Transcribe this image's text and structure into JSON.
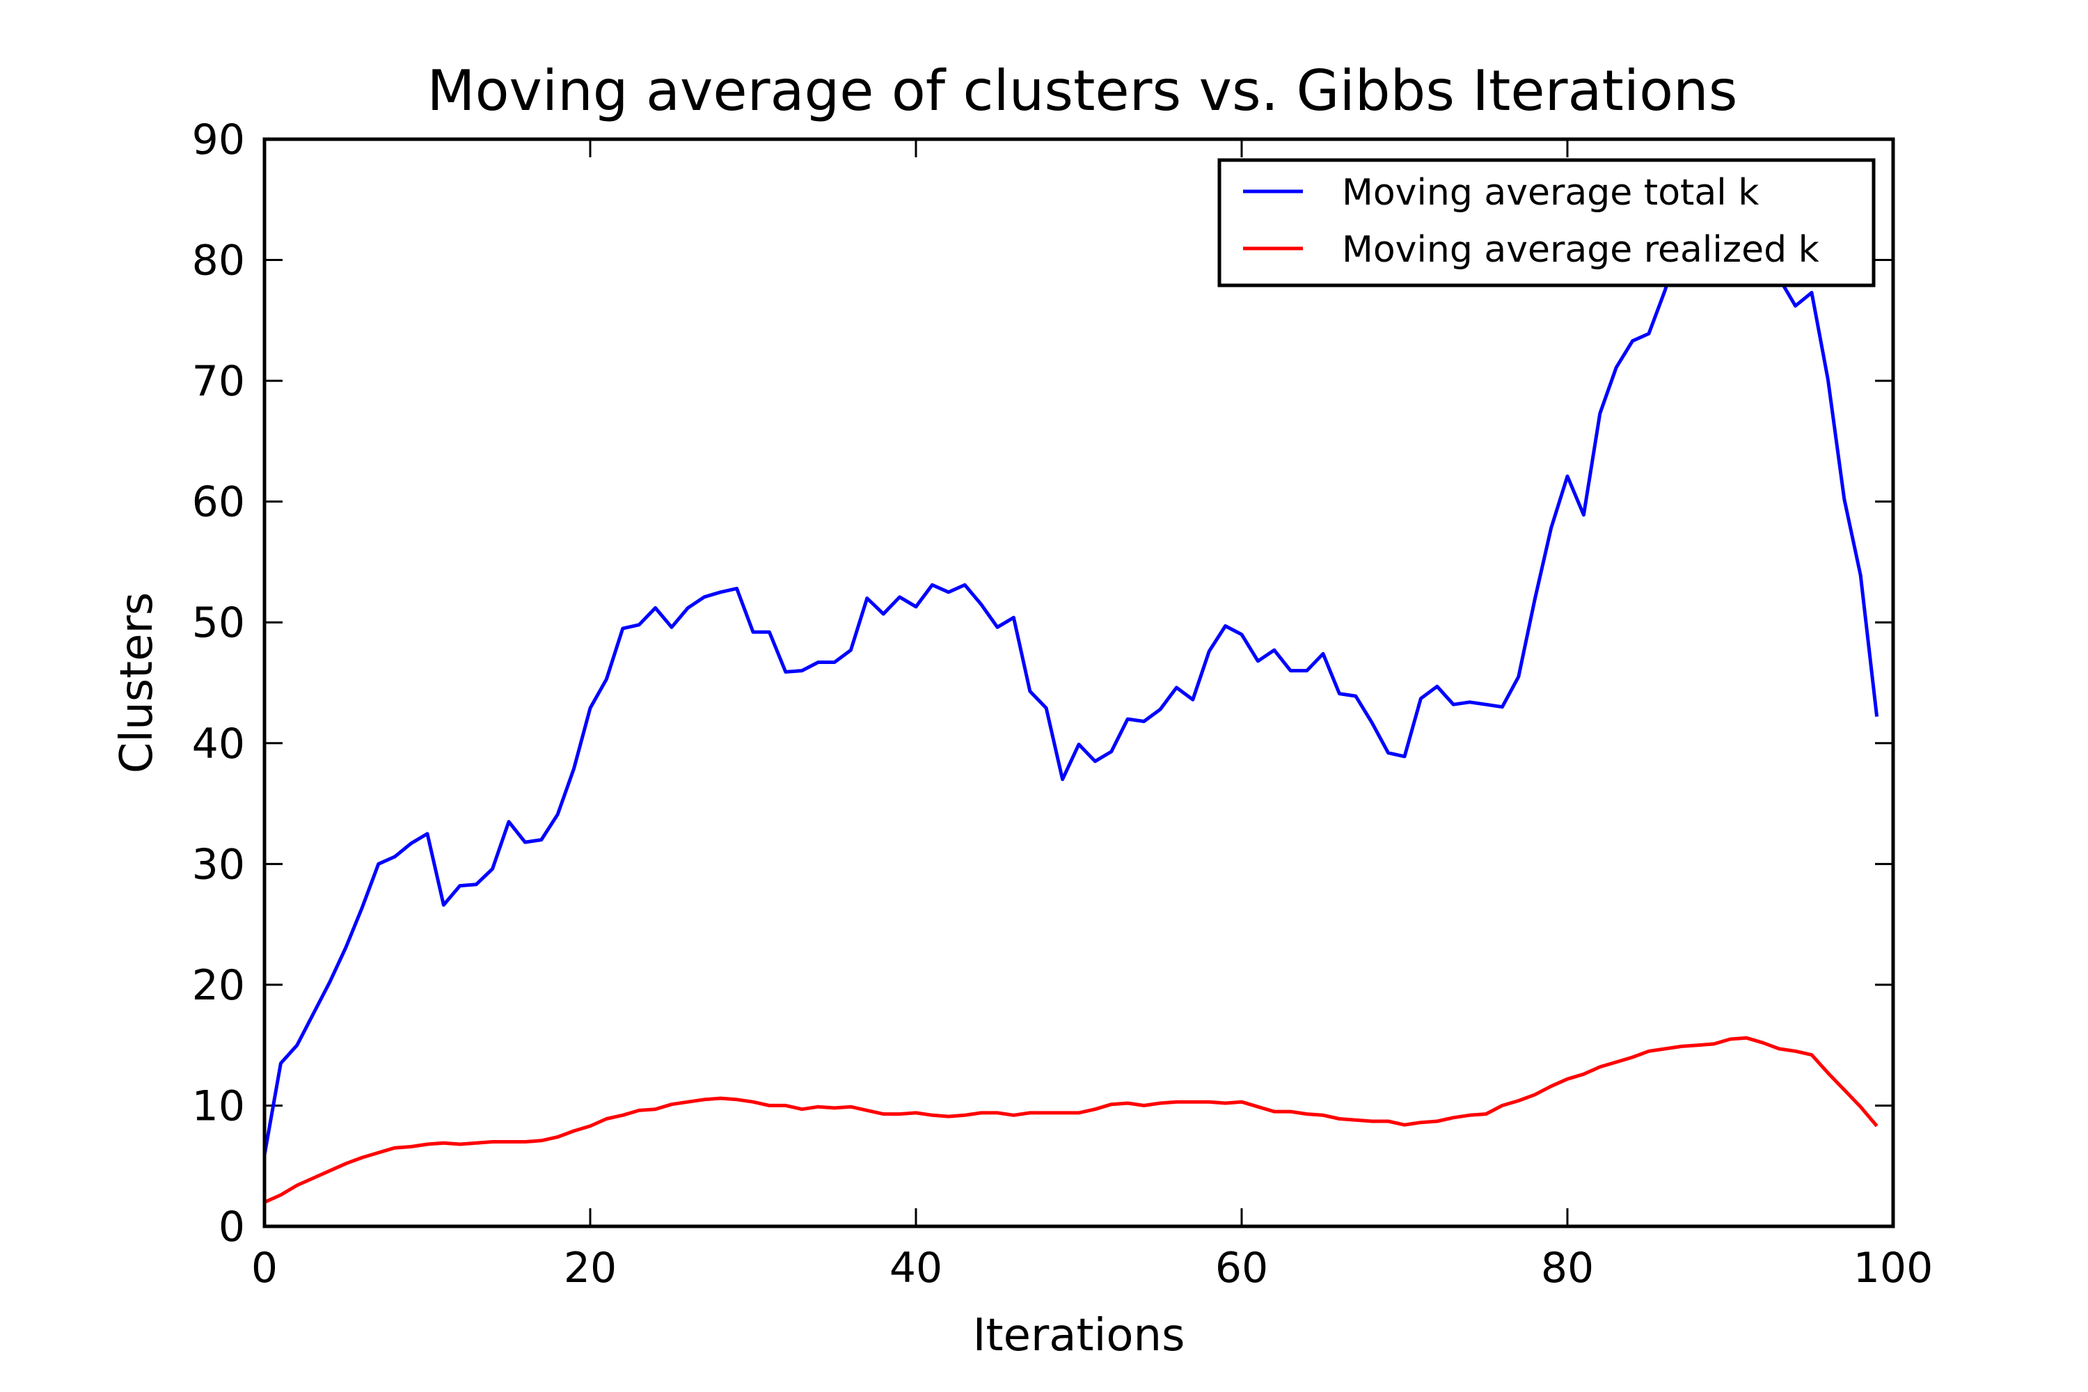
{
  "chart_data": {
    "type": "line",
    "title": "Moving average of clusters vs. Gibbs Iterations",
    "xlabel": "Iterations",
    "ylabel": "Clusters",
    "xlim": [
      0,
      100
    ],
    "ylim": [
      0,
      90
    ],
    "xticks": [
      0,
      20,
      40,
      60,
      80,
      100
    ],
    "yticks": [
      0,
      10,
      20,
      30,
      40,
      50,
      60,
      70,
      80,
      90
    ],
    "grid": false,
    "legend_position": "top-right",
    "x": [
      0,
      1,
      2,
      3,
      4,
      5,
      6,
      7,
      8,
      9,
      10,
      11,
      12,
      13,
      14,
      15,
      16,
      17,
      18,
      19,
      20,
      21,
      22,
      23,
      24,
      25,
      26,
      27,
      28,
      29,
      30,
      31,
      32,
      33,
      34,
      35,
      36,
      37,
      38,
      39,
      40,
      41,
      42,
      43,
      44,
      45,
      46,
      47,
      48,
      49,
      50,
      51,
      52,
      53,
      54,
      55,
      56,
      57,
      58,
      59,
      60,
      61,
      62,
      63,
      64,
      65,
      66,
      67,
      68,
      69,
      70,
      71,
      72,
      73,
      74,
      75,
      76,
      77,
      78,
      79,
      80,
      81,
      82,
      83,
      84,
      85,
      86,
      87,
      88,
      89,
      90,
      91,
      92,
      93,
      94,
      95,
      96,
      97,
      98,
      99
    ],
    "series": [
      {
        "name": "Moving average total k",
        "color": "#0000ff",
        "values": [
          5.9,
          13.5,
          15.0,
          17.6,
          20.2,
          23.1,
          26.4,
          30.0,
          30.6,
          31.7,
          32.5,
          26.6,
          28.2,
          28.3,
          29.6,
          33.5,
          31.8,
          32.0,
          34.1,
          37.9,
          42.9,
          45.3,
          49.5,
          49.8,
          51.2,
          49.6,
          51.2,
          52.1,
          52.5,
          52.8,
          49.2,
          49.2,
          45.9,
          46.0,
          46.7,
          46.7,
          47.7,
          52.0,
          50.7,
          52.1,
          51.3,
          53.1,
          52.5,
          53.1,
          51.5,
          49.6,
          50.4,
          44.3,
          42.9,
          37.0,
          39.9,
          38.5,
          39.3,
          42.0,
          41.8,
          42.8,
          44.6,
          43.6,
          47.6,
          49.7,
          49.0,
          46.8,
          47.7,
          46.0,
          46.0,
          47.4,
          44.1,
          43.9,
          41.7,
          39.2,
          38.9,
          43.7,
          44.7,
          43.2,
          43.4,
          43.2,
          43.0,
          45.5,
          51.9,
          57.8,
          62.1,
          58.9,
          67.3,
          71.1,
          73.3,
          73.9,
          77.5,
          82.0,
          83.5,
          84.0,
          83.5,
          82.5,
          80.5,
          78.5,
          76.2,
          77.3,
          70.1,
          60.2,
          53.9,
          42.2
        ]
      },
      {
        "name": "Moving average realized k",
        "color": "#ff0000",
        "values": [
          2.0,
          2.6,
          3.4,
          4.0,
          4.6,
          5.2,
          5.7,
          6.1,
          6.5,
          6.6,
          6.8,
          6.9,
          6.8,
          6.9,
          7.0,
          7.0,
          7.0,
          7.1,
          7.4,
          7.9,
          8.3,
          8.9,
          9.2,
          9.6,
          9.7,
          10.1,
          10.3,
          10.5,
          10.6,
          10.5,
          10.3,
          10.0,
          10.0,
          9.7,
          9.9,
          9.8,
          9.9,
          9.6,
          9.3,
          9.3,
          9.4,
          9.2,
          9.1,
          9.2,
          9.4,
          9.4,
          9.2,
          9.4,
          9.4,
          9.4,
          9.4,
          9.7,
          10.1,
          10.2,
          10.0,
          10.2,
          10.3,
          10.3,
          10.3,
          10.2,
          10.3,
          9.9,
          9.5,
          9.5,
          9.3,
          9.2,
          8.9,
          8.8,
          8.7,
          8.7,
          8.4,
          8.6,
          8.7,
          9.0,
          9.2,
          9.3,
          10.0,
          10.4,
          10.9,
          11.6,
          12.2,
          12.6,
          13.2,
          13.6,
          14.0,
          14.5,
          14.7,
          14.9,
          15.0,
          15.1,
          15.5,
          15.6,
          15.2,
          14.7,
          14.5,
          14.2,
          12.7,
          11.3,
          9.9,
          8.3
        ]
      }
    ]
  }
}
